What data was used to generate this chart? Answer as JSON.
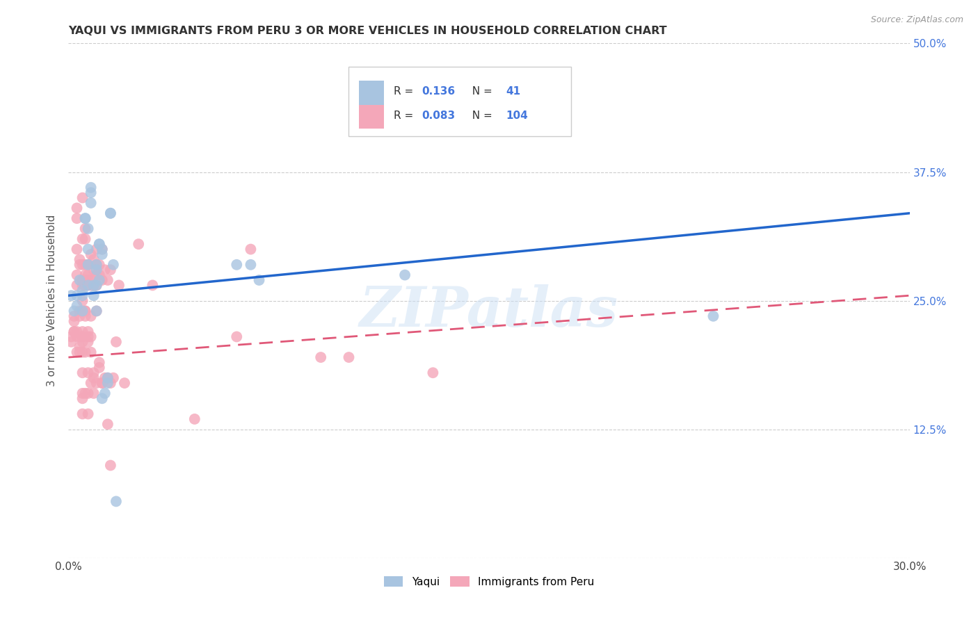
{
  "title": "YAQUI VS IMMIGRANTS FROM PERU 3 OR MORE VEHICLES IN HOUSEHOLD CORRELATION CHART",
  "source": "Source: ZipAtlas.com",
  "ylabel": "3 or more Vehicles in Household",
  "xlabel_label1": "Yaqui",
  "xlabel_label2": "Immigrants from Peru",
  "xmin": 0.0,
  "xmax": 0.3,
  "ymin": 0.0,
  "ymax": 0.5,
  "xticks": [
    0.0,
    0.05,
    0.1,
    0.15,
    0.2,
    0.25,
    0.3
  ],
  "yticks": [
    0.0,
    0.125,
    0.25,
    0.375,
    0.5
  ],
  "yticklabels_right": [
    "",
    "12.5%",
    "25.0%",
    "37.5%",
    "50.0%"
  ],
  "R_yaqui": 0.136,
  "N_yaqui": 41,
  "R_peru": 0.083,
  "N_peru": 104,
  "color_yaqui": "#a8c4e0",
  "color_peru": "#f4a7b9",
  "line_color_yaqui": "#2266cc",
  "line_color_peru": "#e05878",
  "watermark": "ZIPatlas",
  "yaqui_line": [
    [
      0.0,
      0.255
    ],
    [
      0.3,
      0.335
    ]
  ],
  "peru_line": [
    [
      0.0,
      0.195
    ],
    [
      0.3,
      0.255
    ]
  ],
  "yaqui_points": [
    [
      0.001,
      0.255
    ],
    [
      0.002,
      0.24
    ],
    [
      0.003,
      0.255
    ],
    [
      0.003,
      0.245
    ],
    [
      0.004,
      0.27
    ],
    [
      0.005,
      0.255
    ],
    [
      0.005,
      0.24
    ],
    [
      0.005,
      0.26
    ],
    [
      0.006,
      0.33
    ],
    [
      0.006,
      0.33
    ],
    [
      0.007,
      0.32
    ],
    [
      0.007,
      0.3
    ],
    [
      0.007,
      0.285
    ],
    [
      0.007,
      0.265
    ],
    [
      0.008,
      0.355
    ],
    [
      0.008,
      0.36
    ],
    [
      0.008,
      0.345
    ],
    [
      0.009,
      0.255
    ],
    [
      0.009,
      0.265
    ],
    [
      0.01,
      0.285
    ],
    [
      0.01,
      0.28
    ],
    [
      0.01,
      0.265
    ],
    [
      0.01,
      0.24
    ],
    [
      0.011,
      0.305
    ],
    [
      0.011,
      0.305
    ],
    [
      0.011,
      0.27
    ],
    [
      0.012,
      0.3
    ],
    [
      0.012,
      0.295
    ],
    [
      0.012,
      0.155
    ],
    [
      0.013,
      0.16
    ],
    [
      0.014,
      0.175
    ],
    [
      0.014,
      0.17
    ],
    [
      0.015,
      0.335
    ],
    [
      0.015,
      0.335
    ],
    [
      0.016,
      0.285
    ],
    [
      0.017,
      0.055
    ],
    [
      0.06,
      0.285
    ],
    [
      0.065,
      0.285
    ],
    [
      0.068,
      0.27
    ],
    [
      0.12,
      0.275
    ],
    [
      0.23,
      0.235
    ]
  ],
  "peru_points": [
    [
      0.001,
      0.215
    ],
    [
      0.001,
      0.21
    ],
    [
      0.002,
      0.23
    ],
    [
      0.002,
      0.22
    ],
    [
      0.002,
      0.235
    ],
    [
      0.002,
      0.22
    ],
    [
      0.003,
      0.34
    ],
    [
      0.003,
      0.33
    ],
    [
      0.003,
      0.3
    ],
    [
      0.003,
      0.275
    ],
    [
      0.003,
      0.265
    ],
    [
      0.003,
      0.22
    ],
    [
      0.003,
      0.215
    ],
    [
      0.003,
      0.2
    ],
    [
      0.004,
      0.29
    ],
    [
      0.004,
      0.285
    ],
    [
      0.004,
      0.24
    ],
    [
      0.004,
      0.235
    ],
    [
      0.004,
      0.215
    ],
    [
      0.004,
      0.205
    ],
    [
      0.004,
      0.2
    ],
    [
      0.005,
      0.35
    ],
    [
      0.005,
      0.31
    ],
    [
      0.005,
      0.285
    ],
    [
      0.005,
      0.27
    ],
    [
      0.005,
      0.265
    ],
    [
      0.005,
      0.25
    ],
    [
      0.005,
      0.22
    ],
    [
      0.005,
      0.215
    ],
    [
      0.005,
      0.215
    ],
    [
      0.005,
      0.21
    ],
    [
      0.005,
      0.2
    ],
    [
      0.005,
      0.18
    ],
    [
      0.005,
      0.16
    ],
    [
      0.005,
      0.155
    ],
    [
      0.005,
      0.14
    ],
    [
      0.006,
      0.32
    ],
    [
      0.006,
      0.31
    ],
    [
      0.006,
      0.285
    ],
    [
      0.006,
      0.275
    ],
    [
      0.006,
      0.27
    ],
    [
      0.006,
      0.265
    ],
    [
      0.006,
      0.24
    ],
    [
      0.006,
      0.24
    ],
    [
      0.006,
      0.235
    ],
    [
      0.006,
      0.2
    ],
    [
      0.006,
      0.16
    ],
    [
      0.007,
      0.285
    ],
    [
      0.007,
      0.275
    ],
    [
      0.007,
      0.27
    ],
    [
      0.007,
      0.265
    ],
    [
      0.007,
      0.22
    ],
    [
      0.007,
      0.215
    ],
    [
      0.007,
      0.21
    ],
    [
      0.007,
      0.18
    ],
    [
      0.007,
      0.16
    ],
    [
      0.007,
      0.14
    ],
    [
      0.008,
      0.295
    ],
    [
      0.008,
      0.27
    ],
    [
      0.008,
      0.265
    ],
    [
      0.008,
      0.235
    ],
    [
      0.008,
      0.215
    ],
    [
      0.008,
      0.2
    ],
    [
      0.008,
      0.17
    ],
    [
      0.009,
      0.29
    ],
    [
      0.009,
      0.28
    ],
    [
      0.009,
      0.265
    ],
    [
      0.009,
      0.18
    ],
    [
      0.009,
      0.175
    ],
    [
      0.009,
      0.16
    ],
    [
      0.01,
      0.3
    ],
    [
      0.01,
      0.285
    ],
    [
      0.01,
      0.275
    ],
    [
      0.01,
      0.265
    ],
    [
      0.01,
      0.24
    ],
    [
      0.01,
      0.17
    ],
    [
      0.011,
      0.285
    ],
    [
      0.011,
      0.275
    ],
    [
      0.011,
      0.19
    ],
    [
      0.011,
      0.185
    ],
    [
      0.012,
      0.3
    ],
    [
      0.012,
      0.27
    ],
    [
      0.012,
      0.17
    ],
    [
      0.012,
      0.17
    ],
    [
      0.013,
      0.28
    ],
    [
      0.013,
      0.175
    ],
    [
      0.014,
      0.27
    ],
    [
      0.014,
      0.175
    ],
    [
      0.014,
      0.13
    ],
    [
      0.015,
      0.28
    ],
    [
      0.015,
      0.17
    ],
    [
      0.015,
      0.09
    ],
    [
      0.016,
      0.175
    ],
    [
      0.017,
      0.21
    ],
    [
      0.018,
      0.265
    ],
    [
      0.02,
      0.17
    ],
    [
      0.025,
      0.305
    ],
    [
      0.03,
      0.265
    ],
    [
      0.045,
      0.135
    ],
    [
      0.06,
      0.215
    ],
    [
      0.065,
      0.3
    ],
    [
      0.09,
      0.195
    ],
    [
      0.1,
      0.195
    ],
    [
      0.13,
      0.18
    ]
  ],
  "background_color": "#ffffff",
  "grid_color": "#cccccc",
  "right_tick_color": "#4477dd",
  "title_color": "#333333",
  "axis_label_color": "#555555"
}
